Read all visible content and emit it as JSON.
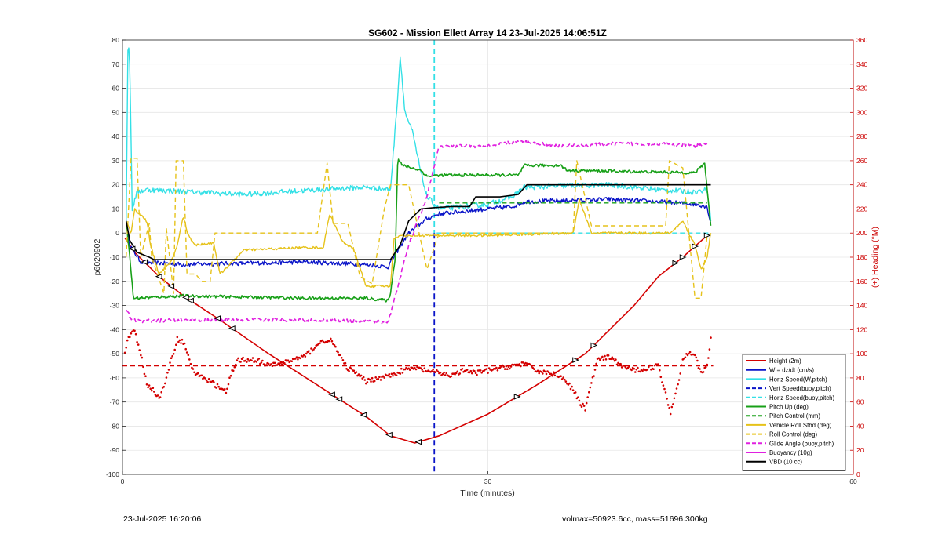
{
  "chart_data": {
    "type": "line",
    "title": "SG602 - Mission Ellett Array 14 23-Jul-2025 14:06:51Z",
    "xlabel": "Time (minutes)",
    "ylabel_left": "p6020902",
    "ylabel_right": "(+) Heading (°M)",
    "xlim": [
      0,
      60
    ],
    "ylim_left": [
      -100,
      80
    ],
    "ylim_right": [
      0,
      360
    ],
    "xticks": [
      0,
      30,
      60
    ],
    "yticks_left": [
      -100,
      -90,
      -80,
      -70,
      -60,
      -50,
      -40,
      -30,
      -20,
      -10,
      0,
      10,
      20,
      30,
      40,
      50,
      60,
      70,
      80
    ],
    "yticks_right": [
      0,
      20,
      40,
      60,
      80,
      100,
      120,
      140,
      160,
      180,
      200,
      220,
      240,
      260,
      280,
      300,
      320,
      340,
      360
    ],
    "grid": true,
    "legend_position": "bottom-right",
    "colors": {
      "red": "#d40000",
      "blue": "#0a14c8",
      "cyan": "#33e0e6",
      "green": "#18a018",
      "yellow": "#e6c21a",
      "magenta": "#e020e0",
      "black": "#000000",
      "right_axis": "#cc0000"
    },
    "vertical_lines": [
      {
        "x": 25.6,
        "color": "#33e0e6",
        "style": "dashed",
        "span": "upper"
      },
      {
        "x": 25.6,
        "color": "#0a14c8",
        "style": "dashed",
        "span": "lower"
      }
    ],
    "heading_mean_line": {
      "y_heading": 90,
      "color": "#d40000",
      "style": "dashed"
    },
    "legend": [
      {
        "label": "Height (2m)",
        "color": "#d40000",
        "style": "solid"
      },
      {
        "label": "W = dz/dt (cm/s)",
        "color": "#0a14c8",
        "style": "solid"
      },
      {
        "label": "Horiz Speed(W,pitch)",
        "color": "#33e0e6",
        "style": "solid"
      },
      {
        "label": "Vert Speed(buoy,pitch)",
        "color": "#0a14c8",
        "style": "dashed"
      },
      {
        "label": "Horiz Speed(buoy,pitch)",
        "color": "#33e0e6",
        "style": "dashed"
      },
      {
        "label": "Pitch Up (deg)",
        "color": "#18a018",
        "style": "solid"
      },
      {
        "label": "Pitch Control (mm)",
        "color": "#18a018",
        "style": "dashed"
      },
      {
        "label": "Vehicle Roll Stbd (deg)",
        "color": "#e6c21a",
        "style": "solid"
      },
      {
        "label": "Roll Control (deg)",
        "color": "#e6c21a",
        "style": "dashed"
      },
      {
        "label": "Glide Angle (buoy,pitch)",
        "color": "#e020e0",
        "style": "dashed"
      },
      {
        "label": "Buoyancy (10g)",
        "color": "#e020e0",
        "style": "solid"
      },
      {
        "label": "VBD (10 cc)",
        "color": "#000000",
        "style": "solid"
      }
    ],
    "series": [
      {
        "name": "Height (2m)",
        "color": "#d40000",
        "style": "solid",
        "width": 1.6,
        "x": [
          0.2,
          1,
          3,
          5,
          8,
          12,
          16,
          20,
          22,
          24,
          26,
          30,
          34,
          38,
          42,
          44,
          46,
          48
        ],
        "y": [
          -2,
          -8,
          -18,
          -26,
          -36,
          -50,
          -63,
          -76,
          -84,
          -87,
          -84,
          -75,
          -63,
          -50,
          -30,
          -18,
          -10,
          -1
        ]
      },
      {
        "name": "W = dz/dt (cm/s)",
        "color": "#0a14c8",
        "style": "solid",
        "width": 1.4,
        "noise": 0.9,
        "x": [
          0.3,
          0.6,
          1.5,
          5,
          10,
          15,
          20,
          21.8,
          22.5,
          23.5,
          25,
          26,
          30,
          32,
          33,
          40,
          44,
          47,
          48,
          48.3
        ],
        "y": [
          5,
          -5,
          -12,
          -13,
          -12.5,
          -12,
          -13,
          -14,
          -8,
          0,
          6,
          8,
          10,
          11,
          13,
          14,
          13,
          12,
          11,
          4
        ]
      },
      {
        "name": "Horiz Speed(W,pitch)",
        "color": "#33e0e6",
        "style": "solid",
        "width": 1.4,
        "noise": 1.1,
        "x": [
          0.3,
          0.45,
          0.6,
          0.8,
          1.2,
          2,
          6,
          10,
          16,
          20,
          22,
          22.5,
          22.8,
          23.2,
          23.8,
          24.5,
          25,
          26,
          30,
          32,
          33,
          40,
          44,
          47,
          48,
          48.3
        ],
        "y": [
          5,
          80,
          70,
          10,
          17,
          18,
          17,
          16,
          18,
          19,
          18,
          50,
          73,
          50,
          42,
          25,
          15,
          10,
          12,
          15,
          19,
          20,
          18,
          17,
          18,
          6
        ]
      },
      {
        "name": "Horiz Speed(buoy,pitch) (before)",
        "color": "#33e0e6",
        "style": "dashed",
        "width": 1.4,
        "x": [
          25.8,
          48.2
        ],
        "y": [
          0,
          0
        ]
      },
      {
        "name": "Pitch Up (deg)",
        "color": "#18a018",
        "style": "solid",
        "width": 1.6,
        "noise": 0.6,
        "x": [
          0.3,
          0.6,
          0.9,
          5,
          10,
          15,
          20,
          21.8,
          22,
          22.4,
          22.6,
          23,
          24.5,
          25,
          26,
          32.5,
          33,
          36,
          36.5,
          47,
          47.8,
          48.3
        ],
        "y": [
          5,
          -10,
          -27,
          -26,
          -26.5,
          -27,
          -27,
          -28,
          -25,
          -10,
          31,
          28,
          26,
          23.5,
          24,
          24,
          28,
          28,
          26,
          25,
          29,
          3
        ]
      },
      {
        "name": "Pitch Control (mm)",
        "color": "#18a018",
        "style": "dashed",
        "width": 1.3,
        "x": [
          26,
          36.5,
          48
        ],
        "y": [
          12.5,
          12.5,
          12.5
        ]
      },
      {
        "name": "Vehicle Roll Stbd (deg)",
        "color": "#e6c21a",
        "style": "solid",
        "width": 1.4,
        "noise": 0.5,
        "x": [
          0.3,
          0.7,
          1,
          2,
          2.3,
          3,
          4,
          4.5,
          5,
          5.4,
          6,
          7.5,
          8,
          10,
          15,
          16.5,
          17,
          18,
          19,
          20,
          21,
          22,
          22.3,
          23,
          26,
          30,
          37,
          37.5,
          38.5,
          45,
          46,
          47,
          47.5,
          48,
          48.3
        ],
        "y": [
          5,
          0,
          10,
          5,
          -5,
          -17,
          -12,
          -5,
          7,
          -1,
          -5,
          -4,
          -17,
          -7,
          -6,
          -6,
          8,
          -3,
          -7,
          -22,
          -22,
          -22,
          -2,
          -1,
          -1,
          -1,
          0,
          14,
          0,
          0,
          5,
          -5,
          -15,
          -10,
          0
        ]
      },
      {
        "name": "Roll Control (deg)",
        "color": "#e6c21a",
        "style": "dashed",
        "width": 1.4,
        "x": [
          0.3,
          0.7,
          1.2,
          1.5,
          2.2,
          2.4,
          3.4,
          3.6,
          4.2,
          4.4,
          5,
          5.3,
          6,
          6.5,
          7.2,
          7.6,
          9,
          16,
          16.8,
          17.3,
          18.5,
          19.5,
          20.5,
          21.5,
          22,
          23.5,
          25,
          26,
          37,
          37.3,
          38.5,
          44.6,
          44.9,
          46,
          47,
          47.5,
          48,
          48.3
        ],
        "y": [
          -10,
          31,
          31,
          -10,
          4,
          -10,
          -25,
          2,
          -25,
          30,
          30,
          -17,
          -17,
          -20,
          -20,
          0,
          0,
          0,
          29,
          4,
          4,
          -18,
          -21,
          10,
          20,
          20,
          -15,
          0,
          0,
          30,
          3,
          3,
          30,
          27,
          -27,
          -27,
          -1,
          -1
        ]
      },
      {
        "name": "Glide Angle (buoy,pitch)",
        "color": "#e020e0",
        "style": "dashed",
        "width": 1.6,
        "noise": 0.7,
        "x": [
          0.3,
          0.8,
          1.5,
          5,
          10,
          15,
          20,
          21.8,
          22.3,
          23.5,
          25,
          25.7,
          26,
          30,
          32.5,
          33,
          36,
          40,
          44,
          47,
          48
        ],
        "y": [
          -32,
          -36,
          -36.5,
          -36,
          -36,
          -36,
          -36.5,
          -37,
          -28,
          -5,
          15,
          30,
          36,
          36,
          38,
          38,
          36,
          37,
          37,
          36,
          37
        ]
      },
      {
        "name": "VBD (10 cc)",
        "color": "#000000",
        "style": "solid",
        "width": 1.6,
        "x": [
          0.3,
          0.6,
          1.2,
          2.2,
          2.6,
          10,
          22,
          22.8,
          23.5,
          24.5,
          25.5,
          27,
          28.5,
          29,
          31,
          32.5,
          33.2,
          39,
          48.3
        ],
        "y": [
          5,
          -3,
          -8,
          -10,
          -11,
          -11,
          -11,
          -5,
          5,
          10,
          10.5,
          11,
          11,
          15,
          15,
          16,
          20,
          20,
          20
        ]
      }
    ],
    "heading_series": {
      "name": "Heading (°M)",
      "axis": "right",
      "color": "#d40000",
      "style": "dotted",
      "x": [
        0.2,
        0.5,
        1,
        1.5,
        2,
        2.5,
        3,
        3.5,
        4,
        4.5,
        5,
        5.5,
        6,
        6.5,
        7,
        7.5,
        8,
        8.5,
        9,
        9.5,
        10,
        11,
        12,
        13,
        14,
        15,
        16,
        17,
        17.5,
        18,
        18.5,
        19,
        20,
        21,
        22,
        23,
        24,
        25,
        26,
        27,
        28,
        29,
        30,
        31,
        32,
        33,
        34,
        35,
        36,
        37,
        37.5,
        38,
        39,
        40,
        41,
        42,
        43,
        44,
        44.5,
        45,
        45.5,
        46,
        46.5,
        47,
        47.5,
        48,
        48.3
      ],
      "y": [
        100,
        115,
        118,
        100,
        75,
        70,
        63,
        75,
        95,
        112,
        110,
        95,
        82,
        82,
        78,
        75,
        72,
        68,
        85,
        95,
        95,
        95,
        90,
        92,
        95,
        98,
        108,
        112,
        105,
        95,
        88,
        85,
        77,
        80,
        82,
        86,
        88,
        86,
        84,
        82,
        86,
        84,
        86,
        88,
        90,
        92,
        86,
        84,
        82,
        70,
        60,
        55,
        95,
        97,
        90,
        86,
        88,
        90,
        70,
        52,
        70,
        95,
        102,
        100,
        83,
        90,
        112
      ]
    },
    "direction_markers": {
      "color": "#000000",
      "x": [
        0.8,
        1.8,
        3,
        4,
        5.2,
        5.6,
        7.8,
        9,
        17.2,
        17.8,
        19.8,
        21.9,
        24.3,
        32.4,
        37.2,
        38.7,
        45.4,
        46,
        47,
        48
      ]
    }
  },
  "footer": {
    "date": "23-Jul-2025 16:20:06",
    "stats": "volmax=50923.6cc, mass=51696.300kg"
  }
}
